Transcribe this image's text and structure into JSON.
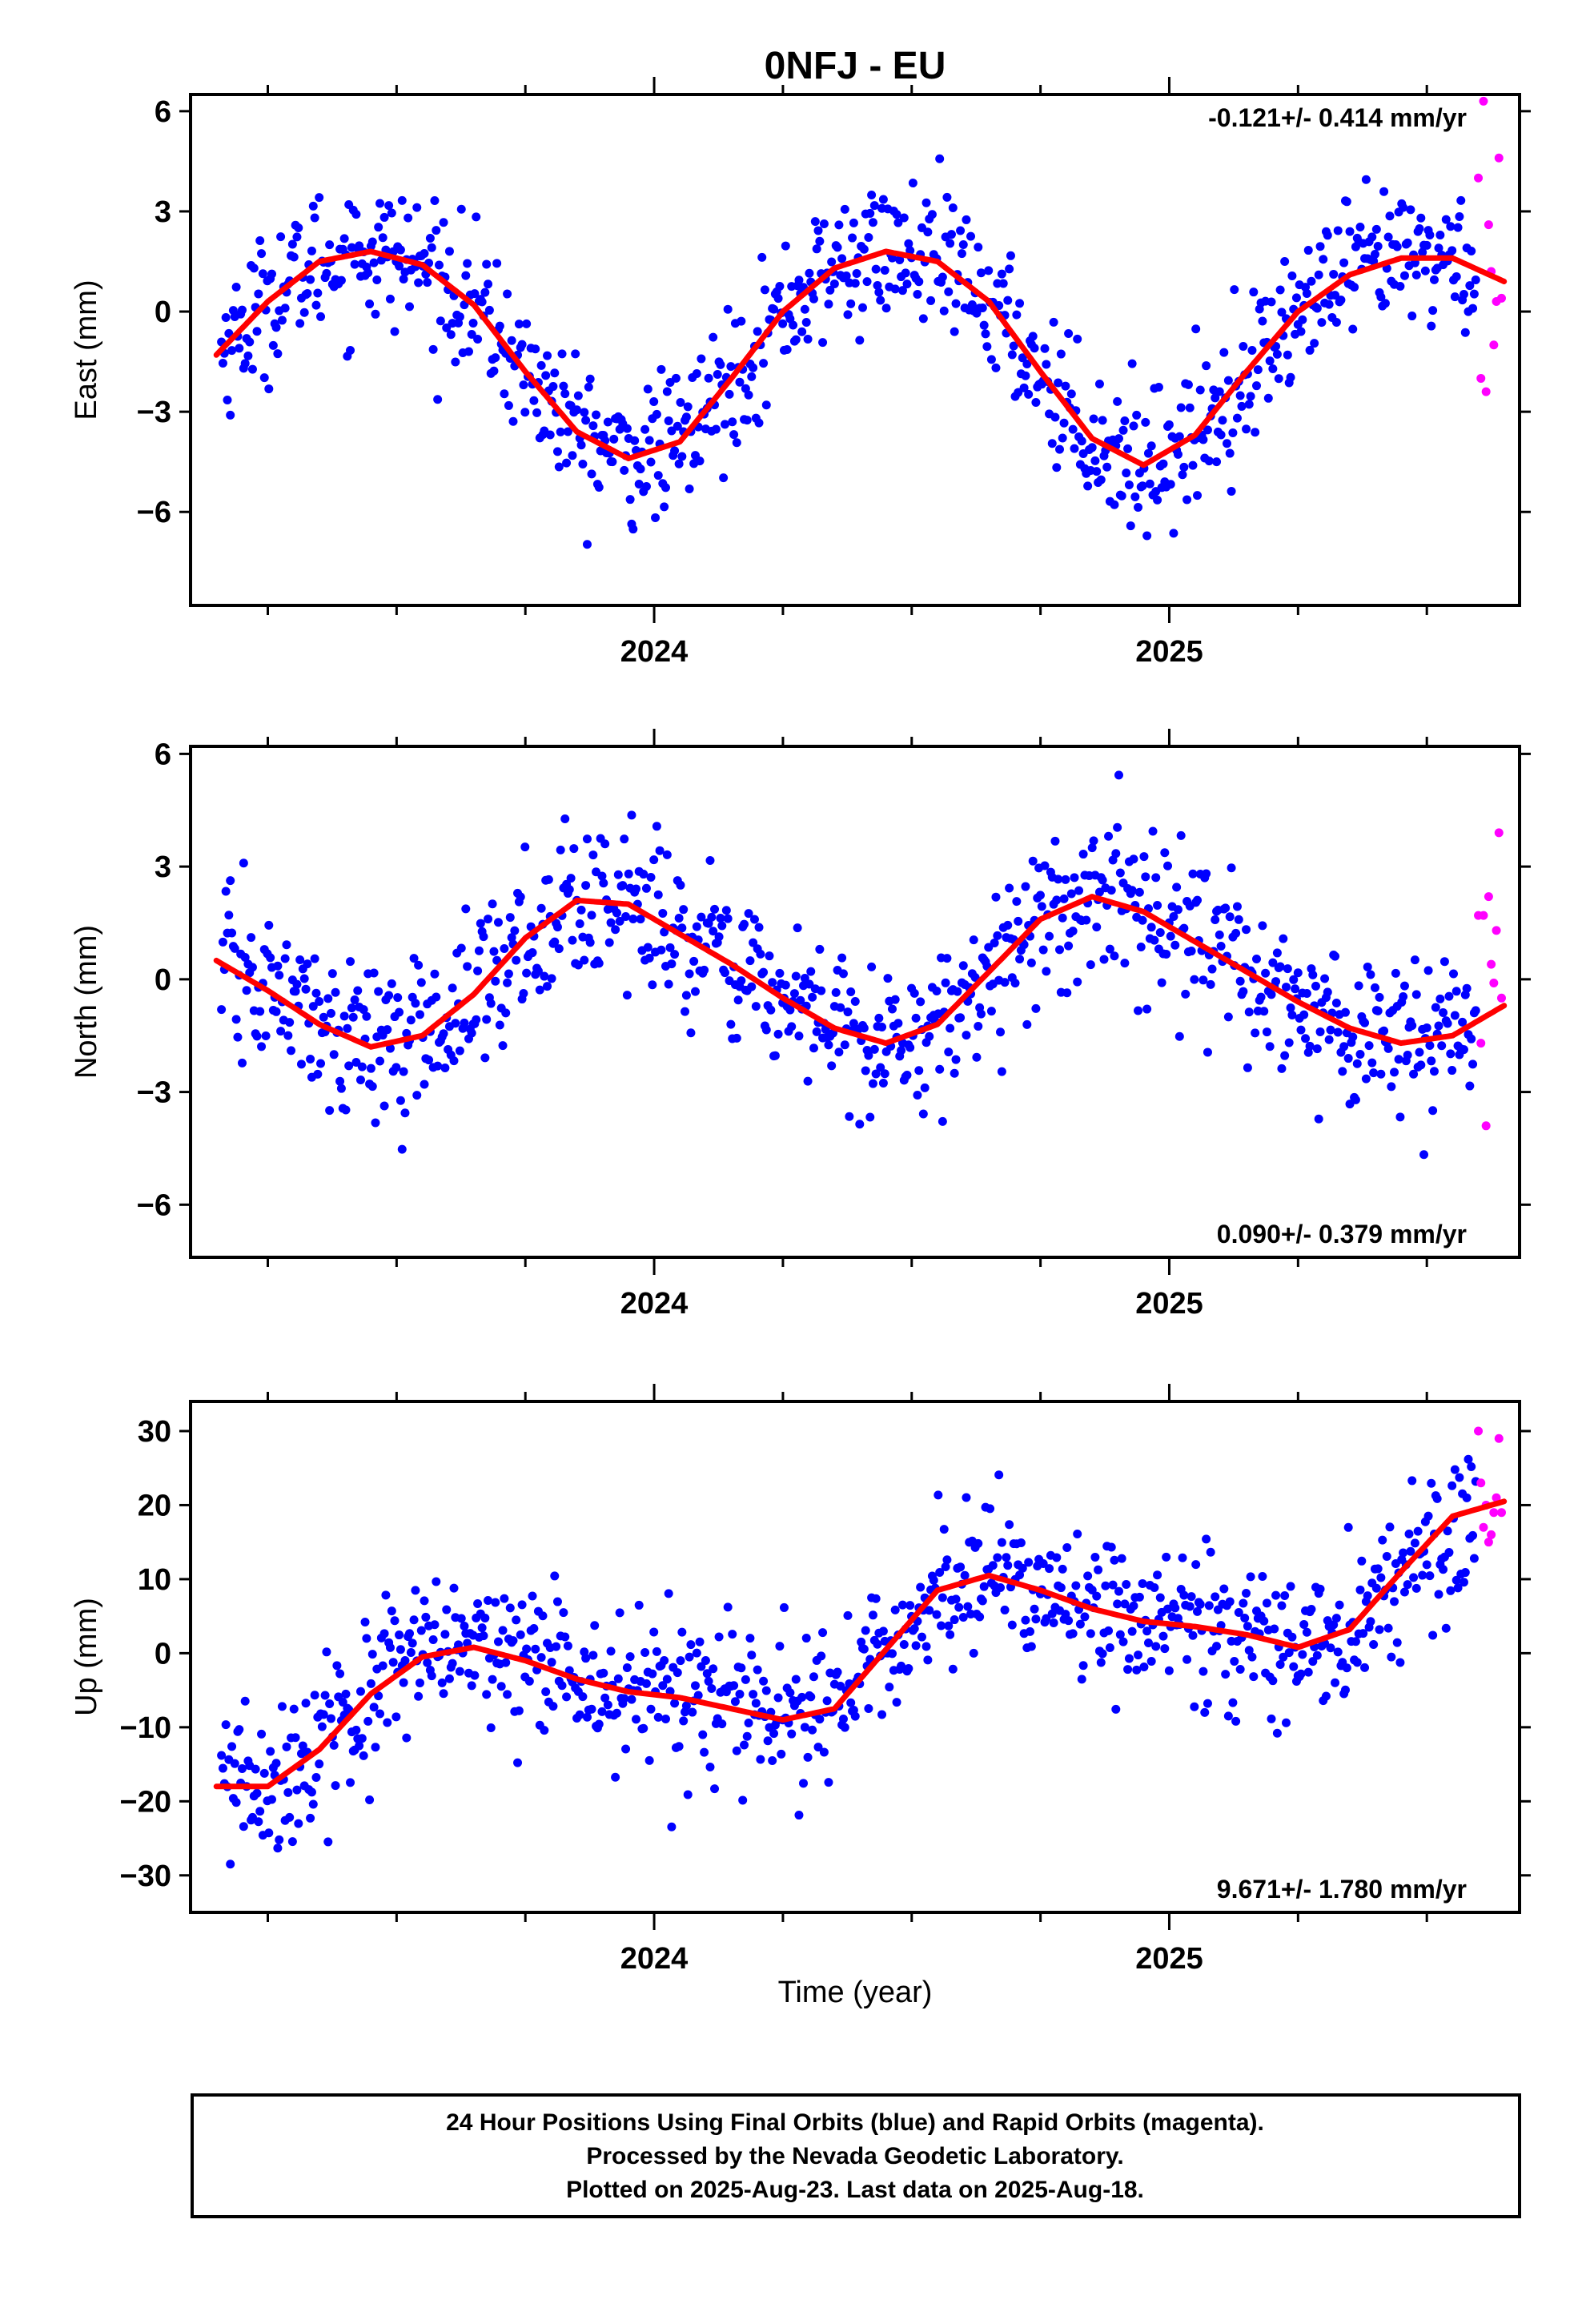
{
  "title": "0NFJ - EU",
  "xlabel": "Time (year)",
  "footer": {
    "line1": "24 Hour Positions Using Final Orbits (blue) and Rapid Orbits (magenta).",
    "line2": "Processed by the Nevada Geodetic Laboratory.",
    "line3": "Plotted on 2025-Aug-23. Last data on 2025-Aug-18."
  },
  "colors": {
    "final": "#0000ff",
    "rapid": "#ff00ff",
    "model": "#ff0000",
    "axis": "#000000"
  },
  "chart_data": [
    {
      "type": "scatter",
      "panel": "east",
      "ylabel": "East (mm)",
      "rate": "-0.121+/- 0.414 mm/yr",
      "rate_position": "top-right",
      "xlim": [
        2023.1,
        2025.68
      ],
      "ylim": [
        -8.8,
        6.5
      ],
      "yticks": [
        -6,
        -3,
        0,
        3,
        6
      ],
      "xticks_major": [
        2024,
        2025
      ],
      "model": {
        "x": [
          2023.15,
          2023.25,
          2023.35,
          2023.45,
          2023.55,
          2023.65,
          2023.75,
          2023.85,
          2023.95,
          2024.05,
          2024.15,
          2024.25,
          2024.35,
          2024.45,
          2024.55,
          2024.65,
          2024.75,
          2024.85,
          2024.95,
          2025.05,
          2025.15,
          2025.25,
          2025.35,
          2025.45,
          2025.55,
          2025.65
        ],
        "y": [
          -1.3,
          0.3,
          1.5,
          1.8,
          1.4,
          0.2,
          -1.8,
          -3.6,
          -4.4,
          -3.9,
          -2.0,
          0.0,
          1.3,
          1.8,
          1.5,
          0.3,
          -1.8,
          -3.8,
          -4.6,
          -3.7,
          -1.8,
          0.0,
          1.1,
          1.6,
          1.6,
          0.9
        ]
      },
      "rapid": {
        "x": [
          2025.6,
          2025.605,
          2025.61,
          2025.615,
          2025.62,
          2025.625,
          2025.63,
          2025.635,
          2025.64,
          2025.645
        ],
        "y": [
          4.0,
          -2.0,
          6.3,
          -2.4,
          2.6,
          1.2,
          -1.0,
          0.3,
          4.6,
          0.4
        ]
      }
    },
    {
      "type": "scatter",
      "panel": "north",
      "ylabel": "North (mm)",
      "rate": "0.090+/- 0.379 mm/yr",
      "rate_position": "bottom-right",
      "xlim": [
        2023.1,
        2025.68
      ],
      "ylim": [
        -7.4,
        6.2
      ],
      "yticks": [
        -6,
        -3,
        0,
        3,
        6
      ],
      "xticks_major": [
        2024,
        2025
      ],
      "model": {
        "x": [
          2023.15,
          2023.25,
          2023.35,
          2023.45,
          2023.55,
          2023.65,
          2023.75,
          2023.85,
          2023.95,
          2024.05,
          2024.15,
          2024.25,
          2024.35,
          2024.45,
          2024.55,
          2024.65,
          2024.75,
          2024.85,
          2024.95,
          2025.05,
          2025.15,
          2025.25,
          2025.35,
          2025.45,
          2025.55,
          2025.65
        ],
        "y": [
          0.5,
          -0.3,
          -1.2,
          -1.8,
          -1.5,
          -0.4,
          1.1,
          2.1,
          2.0,
          1.2,
          0.4,
          -0.5,
          -1.3,
          -1.7,
          -1.2,
          0.2,
          1.6,
          2.2,
          1.8,
          1.0,
          0.2,
          -0.6,
          -1.3,
          -1.7,
          -1.5,
          -0.7
        ]
      },
      "rapid": {
        "x": [
          2025.6,
          2025.605,
          2025.61,
          2025.615,
          2025.62,
          2025.625,
          2025.63,
          2025.635,
          2025.64,
          2025.645
        ],
        "y": [
          1.7,
          -1.7,
          1.7,
          -3.9,
          2.2,
          0.4,
          -0.1,
          1.3,
          3.9,
          -0.5
        ]
      }
    },
    {
      "type": "scatter",
      "panel": "up",
      "ylabel": "Up (mm)",
      "rate": "9.671+/- 1.780 mm/yr",
      "rate_position": "bottom-right",
      "xlim": [
        2023.1,
        2025.68
      ],
      "ylim": [
        -35,
        34
      ],
      "yticks": [
        -30,
        -20,
        -10,
        0,
        10,
        20,
        30
      ],
      "xticks_major": [
        2024,
        2025
      ],
      "model": {
        "x": [
          2023.15,
          2023.25,
          2023.35,
          2023.45,
          2023.55,
          2023.65,
          2023.75,
          2023.85,
          2023.95,
          2024.05,
          2024.15,
          2024.25,
          2024.35,
          2024.45,
          2024.55,
          2024.65,
          2024.75,
          2024.85,
          2024.95,
          2025.05,
          2025.15,
          2025.25,
          2025.35,
          2025.45,
          2025.55,
          2025.65
        ],
        "y": [
          -18.0,
          -18.0,
          -13.0,
          -5.5,
          -0.5,
          0.8,
          -1.0,
          -3.5,
          -5.2,
          -6.0,
          -7.5,
          -9.0,
          -7.5,
          0.5,
          8.5,
          10.5,
          8.5,
          6.0,
          4.3,
          3.6,
          2.5,
          0.8,
          3.2,
          11.0,
          18.5,
          20.5
        ]
      },
      "rapid": {
        "x": [
          2025.6,
          2025.605,
          2025.61,
          2025.615,
          2025.62,
          2025.625,
          2025.63,
          2025.635,
          2025.64,
          2025.645
        ],
        "y": [
          30.0,
          23.0,
          17.0,
          20.0,
          15.0,
          16.0,
          19.0,
          21.0,
          29.0,
          19.0
        ]
      }
    }
  ]
}
